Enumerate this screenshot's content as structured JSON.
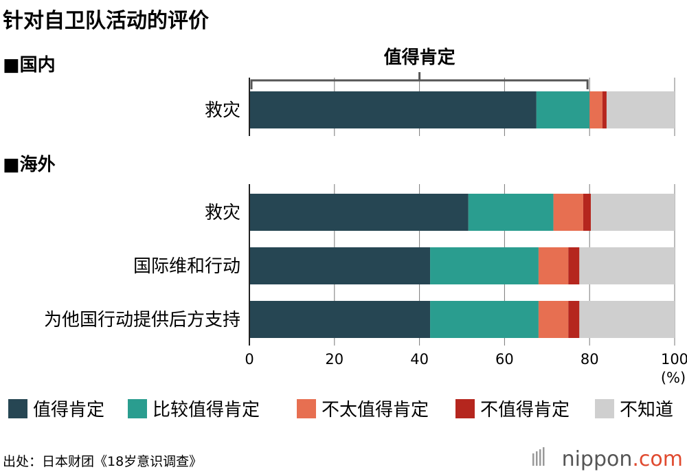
{
  "chart_data": {
    "type": "bar",
    "orientation": "horizontal",
    "stacked": true,
    "title": "针对自卫队活动的评价",
    "xlim": [
      0,
      100
    ],
    "xticks": [
      0,
      20,
      40,
      60,
      80,
      100
    ],
    "xunit": "(%)",
    "bracket_label": "值得肯定",
    "bracket_range": [
      0,
      80
    ],
    "groups": [
      {
        "label": "■国内",
        "categories": [
          "救灾"
        ]
      },
      {
        "label": "■海外",
        "categories": [
          "救灾",
          "国际维和行动",
          "为他国行动提供后方支持"
        ]
      }
    ],
    "series": [
      {
        "name": "值得肯定",
        "color": "#264653",
        "values": [
          67.5,
          51.5,
          42.5,
          42.5
        ]
      },
      {
        "name": "比较值得肯定",
        "color": "#2a9d8f",
        "values": [
          12.5,
          20.0,
          25.5,
          25.5
        ]
      },
      {
        "name": "不太值得肯定",
        "color": "#e76f51",
        "values": [
          3.0,
          7.0,
          7.0,
          7.0
        ]
      },
      {
        "name": "不值得肯定",
        "color": "#b5261e",
        "values": [
          1.0,
          1.8,
          2.6,
          2.6
        ]
      },
      {
        "name": "不知道",
        "color": "#cfcfcf",
        "values": [
          16.0,
          19.7,
          22.4,
          22.4
        ]
      }
    ],
    "legend_position": "bottom"
  },
  "source": "出处：日本财团《18岁意识调查》",
  "brand": {
    "prefix": "nippon",
    "suffix": ".com"
  }
}
